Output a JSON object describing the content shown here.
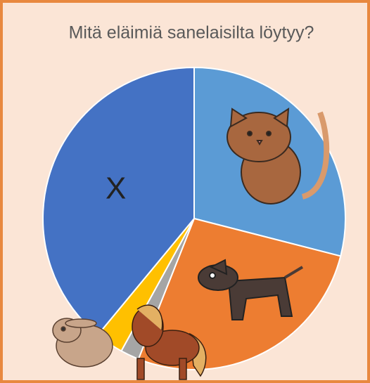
{
  "chart_data": {
    "type": "pie",
    "title": "Mitä eläimiä sanelaisilta löytyy?",
    "categories": [
      null,
      null,
      null,
      null,
      "X"
    ],
    "values": [
      29,
      27,
      2,
      3,
      39
    ],
    "colors": [
      "#5b9bd5",
      "#ed7d31",
      "#a5a5a5",
      "#ffc000",
      "#4472c4"
    ]
  }
}
